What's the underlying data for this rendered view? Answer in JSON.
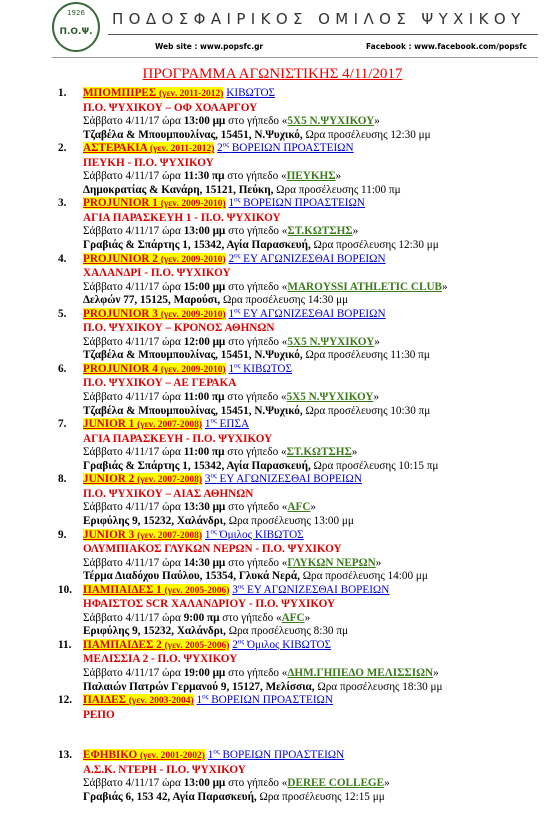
{
  "header": {
    "logo_year": "1926",
    "logo_text": "Π.Ο.Ψ.",
    "title": "ΠΟΔΟΣΦΑΙΡΙΚΟΣ ΟΜΙΛΟΣ ΨΥΧΙΚΟΥ",
    "website": "Web site : www.popsfc.gr",
    "facebook": "Facebook : www.facebook.com/popsfc"
  },
  "document": {
    "title": "ΠΡΟΓΡΑΜΜΑ ΑΓΩΝΙΣΤΙΚΗΣ 4/11/2017",
    "items": [
      {
        "num": "1.",
        "team": "ΜΠΟΜΠΙΡΕΣ",
        "gen": "(γεν. 2011-2012)",
        "league": "ΚΙΒΩΤΟΣ",
        "match": "Π.Ο. ΨΥΧΙΚΟΥ – ΟΦ ΧΟΛΑΡΓΟΥ",
        "when": "Σάββατο 4/11/17 ώρα",
        "time": "13:00 μμ",
        "where": "στο γήπεδο «",
        "venue": "5Χ5 Ν.ΨΥΧΙΚΟΥ",
        "end": "»",
        "address": "Τζαβέλα & Μπουμπουλίνας, 15451, Ν.Ψυχικό,",
        "arrival": "Ωρα προσέλευσης 12:30 μμ"
      },
      {
        "num": "2.",
        "team": "ΑΣΤΕΡΑΚΙΑ",
        "gen": "(γεν. 2011-2012)",
        "league_num": "2",
        "league_sup": "ος",
        "league": "ΒΟΡΕΙΩΝ ΠΡΟΑΣΤΕΙΩΝ",
        "match": "ΠΕΥΚΗ - Π.Ο. ΨΥΧΙΚΟΥ",
        "when": "Σάββατο 4/11/17 ώρα",
        "time": "11:30 πμ",
        "where": "στο γήπεδο «",
        "venue": "ΠΕΥΚΗΣ",
        "end": "»",
        "address": "Δημοκρατίας & Κανάρη, 15121, Πεύκη,",
        "arrival": "Ωρα προσέλευσης 11:00 πμ"
      },
      {
        "num": "3.",
        "team": "PROJUNIOR 1",
        "gen": "(γεν. 2009-2010)",
        "league_num": "1",
        "league_sup": "ος",
        "league": "ΒΟΡΕΙΩΝ ΠΡΟΑΣΤΕΙΩΝ",
        "match": "ΑΓΙΑ ΠΑΡΑΣΚΕΥΗ 1 - Π.Ο. ΨΥΧΙΚΟΥ",
        "when": "Σάββατο 4/11/17 ώρα",
        "time": "13:00 μμ",
        "where": "στο γήπεδο «",
        "venue": "ΣΤ.ΚΩΤΣΗΣ",
        "end": "»",
        "address": "Γραβιάς & Σπάρτης 1, 15342, Αγία Παρασκευή,",
        "arrival": "Ωρα προσέλευσης 12:30 μμ"
      },
      {
        "num": "4.",
        "team": "PROJUNIOR 2",
        "gen": "(γεν. 2009-2010)",
        "league_num": "2",
        "league_sup": "ος",
        "league": "ΕΥ ΑΓΩΝΙΖΕΣΘΑΙ ΒΟΡΕΙΩΝ",
        "match": "ΧΑΛΑΝΔΡΙ - Π.Ο. ΨΥΧΙΚΟΥ",
        "when": "Σάββατο 4/11/17 ώρα",
        "time": "15:00 μμ",
        "where": "στο γήπεδο «",
        "venue": "MAROYSSI ATHLETIC CLUB",
        "end": "»",
        "address": "Δελφών 77, 15125, Μαρούσι,",
        "arrival": "Ωρα προσέλευσης 14:30 μμ"
      },
      {
        "num": "5.",
        "team": "PROJUNIOR 3",
        "gen": "(γεν. 2009-2010)",
        "league_num": "1",
        "league_sup": "ος",
        "league": "ΕΥ ΑΓΩΝΙΖΕΣΘΑΙ ΒΟΡΕΙΩΝ",
        "match": "Π.Ο. ΨΥΧΙΚΟΥ – ΚΡΟΝΟΣ ΑΘΗΝΩΝ",
        "when": "Σάββατο 4/11/17 ώρα",
        "time": "12:00 μμ",
        "where": "στο γήπεδο «",
        "venue": "5Χ5 Ν.ΨΥΧΙΚΟΥ",
        "end": "»",
        "address": "Τζαβέλα & Μπουμπουλίνας, 15451, Ν.Ψυχικό,",
        "arrival": "Ωρα προσέλευσης 11:30 πμ"
      },
      {
        "num": "6.",
        "team": "PROJUNIOR 4",
        "gen": "(γεν. 2009-2010)",
        "league_num": "1",
        "league_sup": "ος",
        "league": "ΚΙΒΩΤΟΣ",
        "match": "Π.Ο. ΨΥΧΙΚΟΥ – ΑΕ ΓΕΡΑΚΑ",
        "when": "Σάββατο 4/11/17 ώρα",
        "time": "11:00 πμ",
        "where": "στο γήπεδο «",
        "venue": "5Χ5 Ν.ΨΥΧΙΚΟΥ",
        "end": "»",
        "address": "Τζαβέλα & Μπουμπουλίνας, 15451, Ν.Ψυχικό,",
        "arrival": "Ωρα προσέλευσης 10:30 πμ"
      },
      {
        "num": "7.",
        "team": "JUNIOR 1",
        "gen": "(γεν. 2007-2008)",
        "league_num": "1",
        "league_sup": "ος",
        "league": "ΕΠΣΑ",
        "match": "ΑΓΙΑ ΠΑΡΑΣΚΕΥΗ - Π.Ο. ΨΥΧΙΚΟΥ",
        "when": "Σάββατο 4/11/17 ώρα",
        "time": "11:00 πμ",
        "where": "στο γήπεδο «",
        "venue": "ΣΤ.ΚΩΤΣΗΣ",
        "end": "»",
        "address": "Γραβιάς & Σπάρτης 1, 15342, Αγία Παρασκευή,",
        "arrival": "Ωρα προσέλευσης 10:15 πμ"
      },
      {
        "num": "8.",
        "team": "JUNIOR 2",
        "gen": "(γεν. 2007-2008)",
        "league_num": "3",
        "league_sup": "ος",
        "league": "ΕΥ ΑΓΩΝΙΖΕΣΘΑΙ ΒΟΡΕΙΩΝ",
        "match": "Π.Ο. ΨΥΧΙΚΟΥ – ΑΙΑΣ ΑΘΗΝΩΝ",
        "when": "Σάββατο 4/11/17 ώρα",
        "time": "13:30 μμ",
        "where": "στο γήπεδο «",
        "venue": "AFC",
        "end": "»",
        "address": "Εριφύλης 9, 15232, Χαλάνδρι,",
        "arrival": "Ωρα προσέλευσης 13:00 μμ"
      },
      {
        "num": "9.",
        "team": "JUNIOR 3",
        "gen": "(γεν. 2007-2008)",
        "league_num": "1",
        "league_sup": "ος",
        "league": "Όμιλος ΚΙΒΩΤΟΣ",
        "match": "ΟΛΥΜΠΙΑΚΟΣ ΓΛΥΚΩΝ ΝΕΡΩΝ - Π.Ο. ΨΥΧΙΚΟΥ",
        "when": "Σάββατο 4/11/17 ώρα",
        "time": "14:30 μμ",
        "where": "στο γήπεδο «",
        "venue": "ΓΛΥΚΩΝ ΝΕΡΩΝ",
        "end": "»",
        "address": "Τέρμα Διαδόχου Παύλου, 15354, Γλυκά Νερά,",
        "arrival": "Ωρα προσέλευσης 14:00 μμ"
      },
      {
        "num": "10.",
        "team": "ΠΑΜΠΑΙΔΕΣ 1",
        "gen": "(γεν. 2005-2006)",
        "league_num": "3",
        "league_sup": "ος",
        "league": "ΕΥ ΑΓΩΝΙΖΕΣΘΑΙ ΒΟΡΕΙΩΝ",
        "match": "ΗΦΑΙΣΤΟΣ SCR ΧΑΛΑΝΔΡΙΟΥ - Π.Ο. ΨΥΧΙΚΟΥ",
        "when": "Σάββατο 4/11/17 ώρα",
        "time": "9:00 πμ",
        "where": "στο γήπεδο «",
        "venue": "AFC",
        "end": "»",
        "address": "Εριφύλης 9, 15232, Χαλάνδρι,",
        "arrival": "Ωρα προσέλευσης 8:30 πμ"
      },
      {
        "num": "11.",
        "team": "ΠΑΜΠΑΙΔΕΣ 2",
        "gen": "(γεν. 2005-2006)",
        "league_num": "2",
        "league_sup": "ος",
        "league": "Όμιλος ΚΙΒΩΤΟΣ",
        "match": "ΜΕΛΙΣΣΙΑ 2 - Π.Ο. ΨΥΧΙΚΟΥ",
        "when": "Σάββατο 4/11/17 ώρα",
        "time": "19:00 μμ",
        "where": "στο γήπεδο «",
        "venue": "ΔΗΜ.ΓΗΠΕΔΟ ΜΕΛΙΣΣΙΩΝ",
        "end": "»",
        "address": "Παλαιών Πατρών Γερμανού 9, 15127, Μελίσσια,",
        "arrival": "Ωρα προσέλευσης 18:30 μμ"
      },
      {
        "num": "12.",
        "team": "ΠΑΙΔΕΣ",
        "gen": "(γεν. 2003-2004)",
        "league_num": "1",
        "league_sup": "ος",
        "league": "ΒΟΡΕΙΩΝ ΠΡΟΑΣΤΕΙΩΝ",
        "match": "ΡΕΠΟ"
      },
      {
        "num": "13.",
        "team": "ΕΦΗΒΙΚΟ",
        "gen": "(γεν. 2001-2002)",
        "league_num": "1",
        "league_sup": "ος",
        "league": "ΒΟΡΕΙΩΝ ΠΡΟΑΣΤΕΙΩΝ",
        "match": "Α.Σ.Κ. ΝΤΕΡΗ - Π.Ο. ΨΥΧΙΚΟΥ",
        "when": "Σάββατο 4/11/17 ώρα",
        "time": "13:00 μμ",
        "where": "στο γήπεδο «",
        "venue": "DEREE COLLEGE",
        "end": "»",
        "address": "Γραβιάς 6, 153 42, Αγία Παρασκευή,",
        "arrival": "Ωρα προσέλευσης 12:15 μμ"
      }
    ]
  }
}
